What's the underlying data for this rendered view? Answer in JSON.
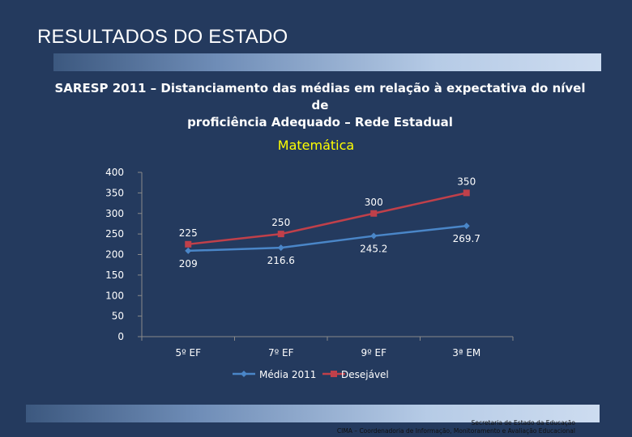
{
  "header": {
    "title": "RESULTADOS DO ESTADO"
  },
  "subtitle": {
    "line1": "SARESP 2011 –  Distanciamento das médias em relação à expectativa do nível de",
    "line2": "proficiência  Adequado – Rede Estadual"
  },
  "footer": {
    "line1": "Secretaria de Estado da Educação",
    "line2": "CIMA – Coordenadoria de Informação, Monitoramento e Avaliação Educacional"
  },
  "colors": {
    "media": "#4a86c8",
    "desejavel": "#c0404a",
    "title": "#ffff00"
  },
  "chart_data": {
    "type": "line",
    "title": "Matemática",
    "categories": [
      "5º EF",
      "7º EF",
      "9º EF",
      "3ª EM"
    ],
    "series": [
      {
        "name": "Média 2011",
        "values": [
          209,
          216.6,
          245.2,
          269.7
        ],
        "labels": [
          "209",
          "216.6",
          "245.2",
          "269.7"
        ]
      },
      {
        "name": "Desejável",
        "values": [
          225,
          250,
          300,
          350
        ],
        "labels": [
          "225",
          "250",
          "300",
          "350"
        ]
      }
    ],
    "ylim": [
      0,
      400
    ],
    "yticks": [
      "0",
      "50",
      "100",
      "150",
      "200",
      "250",
      "300",
      "350",
      "400"
    ],
    "xlabel": "",
    "ylabel": "",
    "legend": "bottom",
    "grid": false
  }
}
